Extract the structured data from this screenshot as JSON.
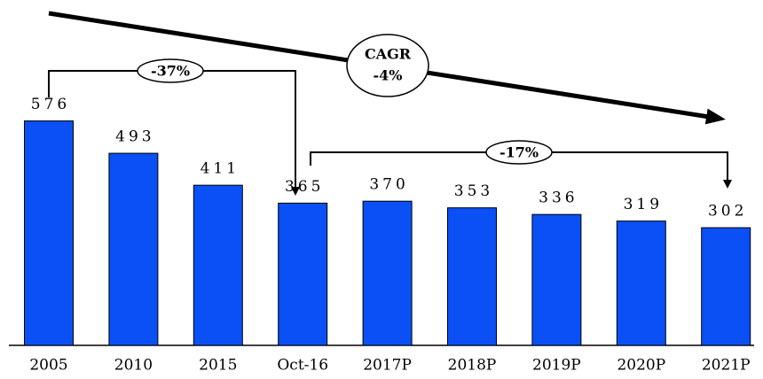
{
  "chart_data": {
    "type": "bar",
    "categories": [
      "2005",
      "2010",
      "2015",
      "Oct-16",
      "2017P",
      "2018P",
      "2019P",
      "2020P",
      "2021P"
    ],
    "values": [
      576,
      493,
      411,
      365,
      370,
      353,
      336,
      319,
      302
    ],
    "color": "#0a50f5",
    "annotations": [
      {
        "text": "-37%"
      },
      {
        "text": "-17%"
      },
      {
        "text": [
          "CAGR",
          "-4%"
        ]
      }
    ]
  }
}
